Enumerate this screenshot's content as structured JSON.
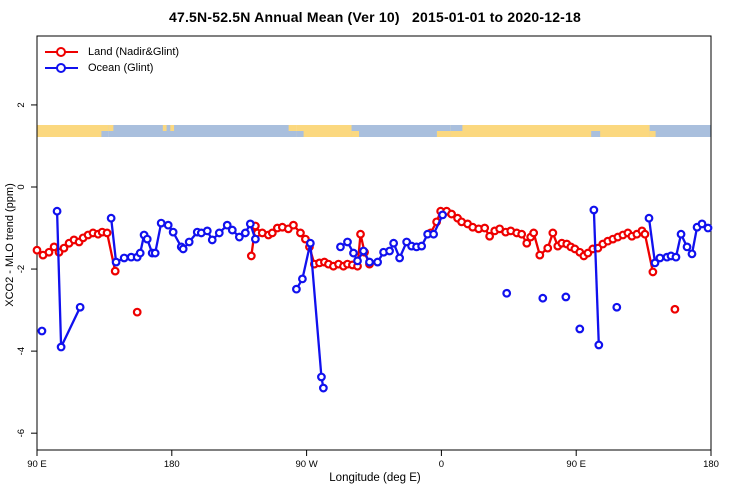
{
  "chart_data": {
    "type": "scatter",
    "title": "47.5N-52.5N Annual Mean (Ver 10)   2015-01-01 to 2020-12-18",
    "xlabel": "Longitude (deg E)",
    "ylabel": "XCO2 - MLO trend (ppm)",
    "grid": false,
    "legend_position": "top-left",
    "x_axis": {
      "range": [
        90,
        540
      ],
      "ticks": [
        {
          "value": 90,
          "label": "90 E"
        },
        {
          "value": 180,
          "label": "180"
        },
        {
          "value": 270,
          "label": "90 W"
        },
        {
          "value": 360,
          "label": "0"
        },
        {
          "value": 450,
          "label": "90 E"
        },
        {
          "value": 540,
          "label": "180"
        }
      ]
    },
    "y_axis": {
      "range": [
        -6.41,
        3.68
      ],
      "ticks": [
        {
          "value": 2,
          "label": "2"
        },
        {
          "value": 0,
          "label": "0"
        },
        {
          "value": -2,
          "label": "-2"
        },
        {
          "value": -4,
          "label": "-4"
        },
        {
          "value": -6,
          "label": "-6"
        }
      ]
    },
    "map_strip": {
      "description": "coastline band 47.5N-52.5N along longitude axis",
      "value_top": 1.5,
      "value_bottom": 1.2,
      "colors": {
        "land": "#fbd87f",
        "ocean": "#a9bfdd"
      },
      "segments": [
        {
          "surface": "land",
          "from": 90,
          "to": 137.5
        },
        {
          "surface": "ocean",
          "from": 137.5,
          "to": 263
        },
        {
          "surface": "land",
          "from": 263,
          "to": 300
        },
        {
          "surface": "ocean",
          "from": 300,
          "to": 366
        },
        {
          "surface": "land",
          "from": 366,
          "to": 499
        },
        {
          "surface": "ocean",
          "from": 499,
          "to": 540
        }
      ],
      "speckles": [
        {
          "surface": "ocean",
          "from": 133,
          "to": 137.5,
          "half": "bottom"
        },
        {
          "surface": "land",
          "from": 137.5,
          "to": 141,
          "half": "top"
        },
        {
          "surface": "land",
          "from": 174,
          "to": 176.5,
          "half": "top"
        },
        {
          "surface": "land",
          "from": 179,
          "to": 181.5,
          "half": "top"
        },
        {
          "surface": "land",
          "from": 258,
          "to": 263,
          "half": "top"
        },
        {
          "surface": "ocean",
          "from": 263,
          "to": 268,
          "half": "bottom"
        },
        {
          "surface": "land",
          "from": 300,
          "to": 305,
          "half": "bottom"
        },
        {
          "surface": "land",
          "from": 357,
          "to": 366,
          "half": "bottom"
        },
        {
          "surface": "ocean",
          "from": 366,
          "to": 374,
          "half": "top"
        },
        {
          "surface": "ocean",
          "from": 460,
          "to": 466,
          "half": "bottom"
        },
        {
          "surface": "land",
          "from": 499,
          "to": 503,
          "half": "bottom"
        }
      ]
    },
    "series": [
      {
        "name": "Land (Nadir&Glint)",
        "color": "#ee0000",
        "marker": "open-circle",
        "segments": [
          [
            [
              90,
              -1.54
            ],
            [
              94,
              -1.66
            ],
            [
              98,
              -1.59
            ],
            [
              101.4,
              -1.46
            ],
            [
              104.7,
              -1.59
            ],
            [
              108,
              -1.49
            ],
            [
              111.4,
              -1.37
            ],
            [
              114.7,
              -1.29
            ],
            [
              118.1,
              -1.34
            ],
            [
              120.8,
              -1.24
            ],
            [
              124.1,
              -1.17
            ],
            [
              127.4,
              -1.12
            ],
            [
              130.8,
              -1.15
            ],
            [
              133.5,
              -1.1
            ],
            [
              136.8,
              -1.12
            ],
            [
              142.2,
              -2.05
            ]
          ],
          [
            [
              233.1,
              -1.68
            ],
            [
              235.8,
              -0.95
            ],
            [
              237.1,
              -1.12
            ],
            [
              240.4,
              -1.12
            ],
            [
              244.5,
              -1.17
            ],
            [
              247.1,
              -1.12
            ],
            [
              250.5,
              -1.0
            ],
            [
              253.8,
              -0.98
            ],
            [
              257.8,
              -1.02
            ],
            [
              261.2,
              -0.93
            ],
            [
              265.9,
              -1.12
            ],
            [
              269.2,
              -1.27
            ],
            [
              271.9,
              -1.46
            ],
            [
              275.2,
              -1.88
            ],
            [
              278.6,
              -1.85
            ],
            [
              281.9,
              -1.83
            ],
            [
              284.6,
              -1.88
            ],
            [
              287.9,
              -1.93
            ],
            [
              291.3,
              -1.88
            ],
            [
              294.6,
              -1.93
            ],
            [
              297.3,
              -1.88
            ],
            [
              300.6,
              -1.9
            ],
            [
              304.0,
              -1.93
            ],
            [
              306.0,
              -1.15
            ],
            [
              308.7,
              -1.59
            ],
            [
              312.0,
              -1.88
            ]
          ],
          [
            [
              352.8,
              -1.12
            ],
            [
              356.8,
              -0.85
            ],
            [
              359.5,
              -0.59
            ],
            [
              363.5,
              -0.59
            ],
            [
              366.8,
              -0.66
            ],
            [
              370.8,
              -0.76
            ],
            [
              373.5,
              -0.85
            ],
            [
              377.5,
              -0.9
            ],
            [
              380.9,
              -0.98
            ],
            [
              384.9,
              -1.02
            ],
            [
              388.9,
              -1.0
            ],
            [
              392.2,
              -1.2
            ],
            [
              395.6,
              -1.07
            ],
            [
              398.9,
              -1.02
            ],
            [
              402.9,
              -1.1
            ],
            [
              406.3,
              -1.07
            ],
            [
              410.3,
              -1.12
            ],
            [
              413.6,
              -1.15
            ],
            [
              417.0,
              -1.37
            ],
            [
              419.6,
              -1.22
            ],
            [
              421.6,
              -1.12
            ],
            [
              425.7,
              -1.66
            ],
            [
              431.0,
              -1.49
            ],
            [
              434.4,
              -1.12
            ],
            [
              437.7,
              -1.44
            ],
            [
              440.4,
              -1.37
            ],
            [
              443.7,
              -1.39
            ],
            [
              446.4,
              -1.46
            ],
            [
              449.1,
              -1.51
            ],
            [
              452.4,
              -1.59
            ],
            [
              455.1,
              -1.68
            ],
            [
              457.8,
              -1.61
            ],
            [
              461.1,
              -1.51
            ],
            [
              464.5,
              -1.49
            ],
            [
              467.8,
              -1.39
            ],
            [
              471.1,
              -1.32
            ],
            [
              474.5,
              -1.27
            ],
            [
              477.8,
              -1.22
            ],
            [
              481.2,
              -1.17
            ],
            [
              484.5,
              -1.12
            ],
            [
              487.2,
              -1.2
            ],
            [
              490.5,
              -1.15
            ],
            [
              493.9,
              -1.07
            ],
            [
              495.9,
              -1.15
            ],
            [
              501.2,
              -2.07
            ]
          ]
        ],
        "isolated_points": [
          [
            156.9,
            -3.05
          ],
          [
            515.9,
            -2.98
          ]
        ]
      },
      {
        "name": "Ocean (Glint)",
        "color": "#1111ee",
        "marker": "open-circle",
        "segments": [
          [
            [
              103.4,
              -0.59
            ],
            [
              106.1,
              -3.9
            ],
            [
              118.8,
              -2.93
            ]
          ],
          [
            [
              139.5,
              -0.76
            ],
            [
              142.8,
              -1.83
            ],
            [
              148.2,
              -1.73
            ],
            [
              152.9,
              -1.71
            ],
            [
              156.9,
              -1.71
            ],
            [
              158.9,
              -1.61
            ],
            [
              161.5,
              -1.17
            ],
            [
              163.6,
              -1.27
            ],
            [
              166.9,
              -1.61
            ],
            [
              168.9,
              -1.61
            ],
            [
              172.9,
              -0.88
            ],
            [
              177.6,
              -0.93
            ],
            [
              180.9,
              -1.1
            ],
            [
              186.3,
              -1.46
            ],
            [
              187.6,
              -1.51
            ],
            [
              191.6,
              -1.34
            ],
            [
              197.0,
              -1.1
            ],
            [
              199.7,
              -1.12
            ],
            [
              203.7,
              -1.07
            ],
            [
              207.0,
              -1.29
            ],
            [
              211.7,
              -1.12
            ],
            [
              217.0,
              -0.93
            ],
            [
              220.4,
              -1.05
            ],
            [
              225.1,
              -1.22
            ],
            [
              229.1,
              -1.12
            ],
            [
              232.4,
              -0.9
            ],
            [
              235.8,
              -1.27
            ]
          ],
          [
            [
              263.2,
              -2.49
            ],
            [
              267.2,
              -2.24
            ],
            [
              272.5,
              -1.37
            ],
            [
              279.9,
              -4.63
            ],
            [
              281.2,
              -4.9
            ]
          ],
          [
            [
              292.6,
              -1.46
            ],
            [
              297.3,
              -1.34
            ],
            [
              301.3,
              -1.61
            ],
            [
              304.0,
              -1.8
            ],
            [
              308.0,
              -1.56
            ],
            [
              312.0,
              -1.83
            ],
            [
              317.4,
              -1.83
            ],
            [
              321.4,
              -1.59
            ],
            [
              325.4,
              -1.56
            ],
            [
              328.1,
              -1.37
            ],
            [
              332.1,
              -1.73
            ],
            [
              336.8,
              -1.34
            ],
            [
              340.1,
              -1.44
            ],
            [
              343.4,
              -1.46
            ],
            [
              346.8,
              -1.44
            ],
            [
              350.8,
              -1.15
            ],
            [
              354.8,
              -1.15
            ],
            [
              360.8,
              -0.68
            ]
          ],
          [
            [
              461.8,
              -0.56
            ],
            [
              465.1,
              -3.85
            ]
          ],
          [
            [
              498.6,
              -0.76
            ],
            [
              502.6,
              -1.85
            ],
            [
              505.9,
              -1.73
            ],
            [
              510.6,
              -1.71
            ],
            [
              513.3,
              -1.68
            ],
            [
              516.6,
              -1.71
            ],
            [
              520.0,
              -1.15
            ],
            [
              524.0,
              -1.46
            ],
            [
              527.3,
              -1.63
            ],
            [
              530.7,
              -0.98
            ],
            [
              534.0,
              -0.9
            ],
            [
              538.0,
              -1.0
            ]
          ]
        ],
        "isolated_points": [
          [
            93.3,
            -3.51
          ],
          [
            403.6,
            -2.59
          ],
          [
            427.7,
            -2.71
          ],
          [
            443.1,
            -2.68
          ],
          [
            452.4,
            -3.46
          ],
          [
            477.1,
            -2.93
          ]
        ]
      }
    ]
  }
}
